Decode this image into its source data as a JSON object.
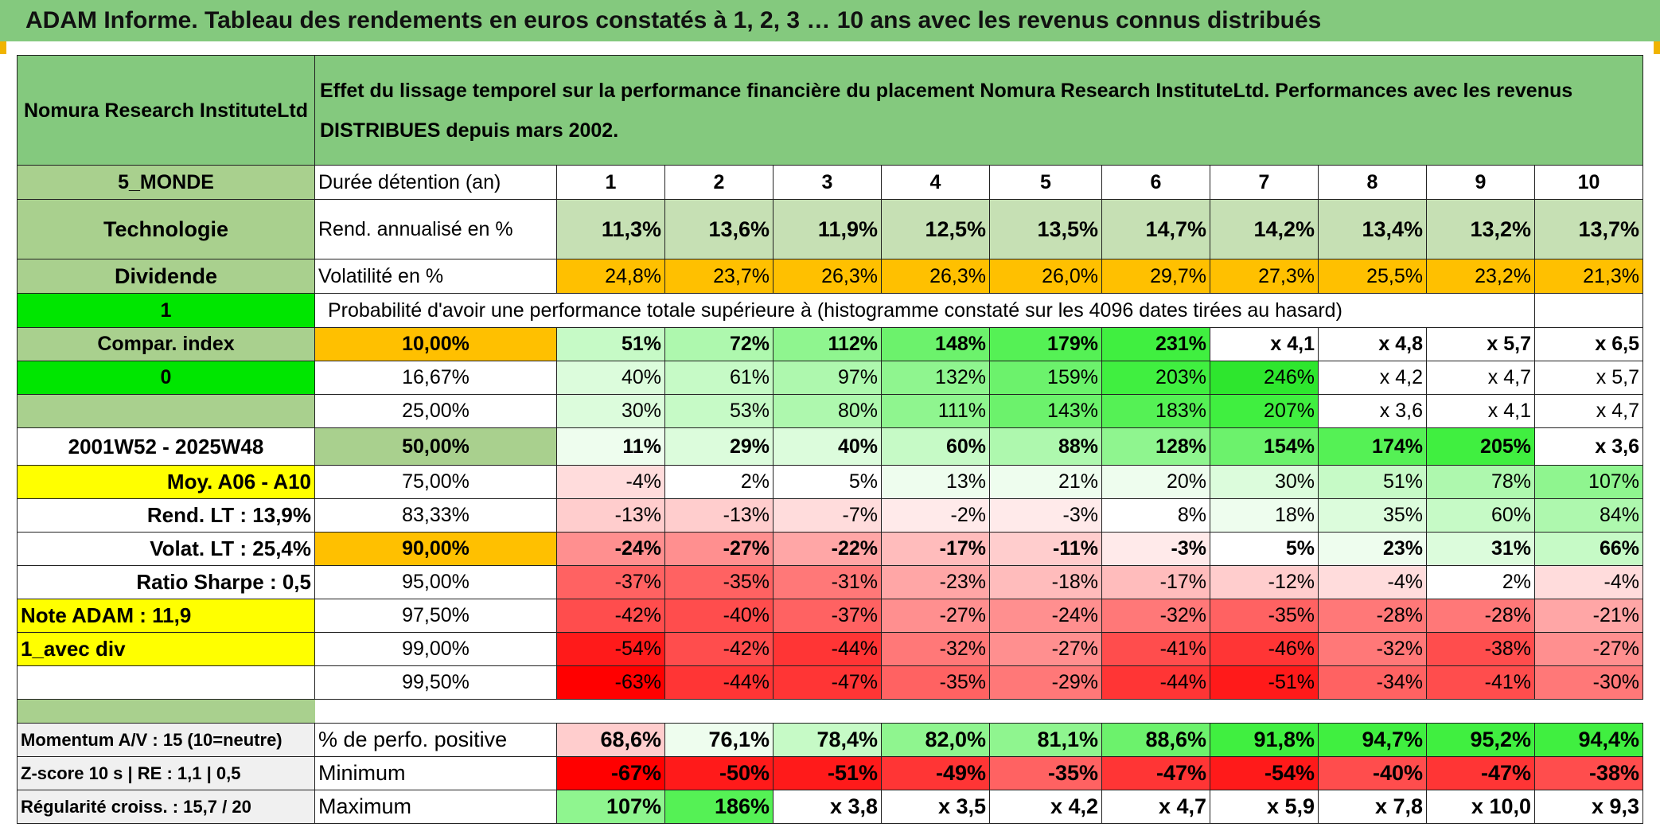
{
  "title": "ADAM Informe. Tableau des rendements en euros constatés à 1, 2, 3 … 10 ans avec les revenus connus distribués",
  "header": {
    "fund_name": "Nomura Research InstituteLtd",
    "description": "Effet du lissage temporel sur la performance financière du placement Nomura Research InstituteLtd. Performances avec les revenus DISTRIBUES depuis mars 2002."
  },
  "left_panel": {
    "zone": "5_MONDE",
    "sector": "Technologie",
    "income": "Dividende",
    "param1": "1",
    "compar_index_label": "Compar. index",
    "param2": "0",
    "period": "2001W52 - 2025W48",
    "moy_label": "Moy. A06 - A10",
    "rend_lt": "Rend. LT :   13,9%",
    "volat_lt": "Volat. LT :   25,4%",
    "sharpe": "Ratio Sharpe :    0,5",
    "note_adam": "Note ADAM : 11,9",
    "avec_div": "1_avec div"
  },
  "duration_row": {
    "label": "Durée détention (an)",
    "years": [
      "1",
      "2",
      "3",
      "4",
      "5",
      "6",
      "7",
      "8",
      "9",
      "10"
    ]
  },
  "rend_row": {
    "label": "Rend. annualisé en %",
    "values": [
      "11,3%",
      "13,6%",
      "11,9%",
      "12,5%",
      "13,5%",
      "14,7%",
      "14,2%",
      "13,4%",
      "13,2%",
      "13,7%"
    ]
  },
  "vol_row": {
    "label": "Volatilité en %",
    "values": [
      "24,8%",
      "23,7%",
      "26,3%",
      "26,3%",
      "26,0%",
      "29,7%",
      "27,3%",
      "25,5%",
      "23,2%",
      "21,3%"
    ]
  },
  "proba_title": "Probabilité d'avoir une performance totale supérieure à (histogramme constaté sur les 4096 dates tirées au hasard)",
  "proba_rows": [
    {
      "pct": "10,00%",
      "values": [
        "51%",
        "72%",
        "112%",
        "148%",
        "179%",
        "231%",
        "x 4,1",
        "x 4,8",
        "x 5,7",
        "x 6,5"
      ]
    },
    {
      "pct": "16,67%",
      "values": [
        "40%",
        "61%",
        "97%",
        "132%",
        "159%",
        "203%",
        "246%",
        "x 4,2",
        "x 4,7",
        "x 5,7"
      ]
    },
    {
      "pct": "25,00%",
      "values": [
        "30%",
        "53%",
        "80%",
        "111%",
        "143%",
        "183%",
        "207%",
        "x 3,6",
        "x 4,1",
        "x 4,7"
      ]
    },
    {
      "pct": "50,00%",
      "values": [
        "11%",
        "29%",
        "40%",
        "60%",
        "88%",
        "128%",
        "154%",
        "174%",
        "205%",
        "x 3,6"
      ]
    },
    {
      "pct": "75,00%",
      "values": [
        "-4%",
        "2%",
        "5%",
        "13%",
        "21%",
        "20%",
        "30%",
        "51%",
        "78%",
        "107%"
      ]
    },
    {
      "pct": "83,33%",
      "values": [
        "-13%",
        "-13%",
        "-7%",
        "-2%",
        "-3%",
        "8%",
        "18%",
        "35%",
        "60%",
        "84%"
      ]
    },
    {
      "pct": "90,00%",
      "values": [
        "-24%",
        "-27%",
        "-22%",
        "-17%",
        "-11%",
        "-3%",
        "5%",
        "23%",
        "31%",
        "66%"
      ]
    },
    {
      "pct": "95,00%",
      "values": [
        "-37%",
        "-35%",
        "-31%",
        "-23%",
        "-18%",
        "-17%",
        "-12%",
        "-4%",
        "2%",
        "-4%"
      ]
    },
    {
      "pct": "97,50%",
      "values": [
        "-42%",
        "-40%",
        "-37%",
        "-27%",
        "-24%",
        "-32%",
        "-35%",
        "-28%",
        "-28%",
        "-21%"
      ]
    },
    {
      "pct": "99,00%",
      "values": [
        "-54%",
        "-42%",
        "-44%",
        "-32%",
        "-27%",
        "-41%",
        "-46%",
        "-32%",
        "-38%",
        "-27%"
      ]
    },
    {
      "pct": "99,50%",
      "values": [
        "-63%",
        "-44%",
        "-47%",
        "-35%",
        "-29%",
        "-44%",
        "-51%",
        "-34%",
        "-41%",
        "-30%"
      ]
    }
  ],
  "bottom_rows": [
    {
      "left": "Momentum A/V : 15 (10=neutre)",
      "label": "% de perfo. positive",
      "values": [
        "68,6%",
        "76,1%",
        "78,4%",
        "82,0%",
        "81,1%",
        "88,6%",
        "91,8%",
        "94,7%",
        "95,2%",
        "94,4%"
      ]
    },
    {
      "left": "Z-score 10 s | RE : 1,1 | 0,5",
      "label": "Minimum",
      "values": [
        "-67%",
        "-50%",
        "-51%",
        "-49%",
        "-35%",
        "-47%",
        "-54%",
        "-40%",
        "-47%",
        "-38%"
      ]
    },
    {
      "left": "Régularité croiss. : 15,7 / 20",
      "label": "Maximum",
      "values": [
        "107%",
        "186%",
        "x 3,8",
        "x 3,5",
        "x 4,2",
        "x 4,7",
        "x 5,9",
        "x 7,8",
        "x 10,0",
        "x 9,3"
      ]
    }
  ],
  "colors": {
    "header_green": "#84c97e",
    "orange": "#ffc000",
    "bright_green": "#00e600",
    "yellow": "#ffff00",
    "red_text": "#e0001a"
  }
}
